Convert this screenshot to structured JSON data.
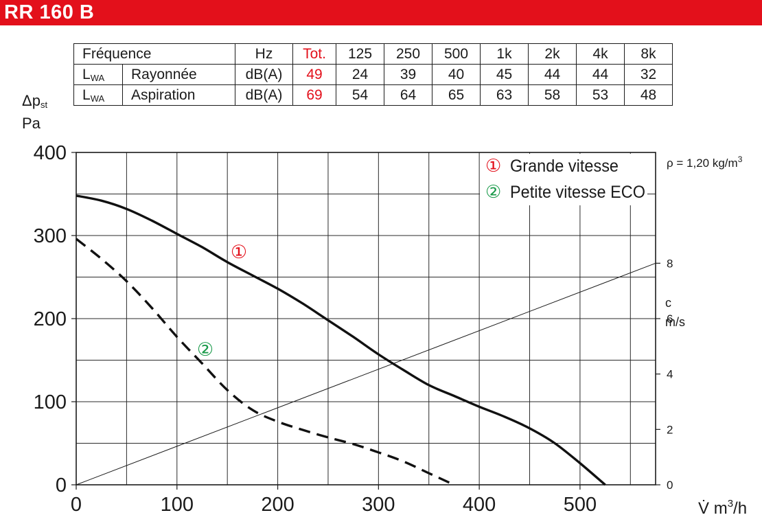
{
  "header": {
    "title": "RR 160 B"
  },
  "table": {
    "headers": [
      "Fréquence",
      "Hz",
      "Tot.",
      "125",
      "250",
      "500",
      "1k",
      "2k",
      "4k",
      "8k"
    ],
    "rows": [
      {
        "sym_main": "L",
        "sym_sub": "WA",
        "label": "Rayonnée",
        "unit": "dB(A)",
        "tot": "49",
        "values": [
          "24",
          "39",
          "40",
          "45",
          "44",
          "44",
          "32"
        ]
      },
      {
        "sym_main": "L",
        "sym_sub": "WA",
        "label": "Aspiration",
        "unit": "dB(A)",
        "tot": "69",
        "values": [
          "54",
          "64",
          "65",
          "63",
          "58",
          "53",
          "48"
        ]
      }
    ]
  },
  "chart_data": {
    "type": "line",
    "ylabel_symbol": "Δp",
    "ylabel_sub": "st",
    "ylabel_unit": "Pa",
    "xlabel_symbol": "V̇",
    "xlabel_unit": "m",
    "xlabel_sup": "3",
    "xlabel_tail": "/h",
    "y2label_symbol": "c",
    "y2label_unit": "m/s",
    "density_prefix": "ρ = 1,20 kg/m",
    "density_sup": "3",
    "xlim": [
      0,
      575
    ],
    "ylim": [
      0,
      400
    ],
    "y2lim": [
      0,
      12
    ],
    "x_ticks": [
      "0",
      "100",
      "200",
      "300",
      "400",
      "500"
    ],
    "y_ticks": [
      "0",
      "100",
      "200",
      "300",
      "400"
    ],
    "y2_ticks": [
      "0",
      "2",
      "4",
      "6",
      "8"
    ],
    "grid": true,
    "series": [
      {
        "name": "Grande vitesse",
        "marker": "①",
        "color": "#e3101b",
        "style": "solid",
        "x": [
          0,
          25,
          50,
          75,
          100,
          125,
          150,
          175,
          200,
          225,
          250,
          275,
          300,
          325,
          350,
          375,
          400,
          425,
          450,
          475,
          500,
          525
        ],
        "y": [
          348,
          342,
          332,
          318,
          302,
          286,
          268,
          252,
          236,
          218,
          198,
          178,
          157,
          138,
          120,
          107,
          94,
          82,
          68,
          50,
          26,
          0
        ]
      },
      {
        "name": "Petite vitesse ECO",
        "marker": "②",
        "color": "#1a9a4a",
        "style": "dashed",
        "x": [
          0,
          25,
          50,
          75,
          100,
          125,
          150,
          175,
          200,
          225,
          250,
          275,
          300,
          325,
          350,
          375
        ],
        "y": [
          296,
          272,
          245,
          213,
          178,
          146,
          114,
          90,
          76,
          66,
          57,
          49,
          39,
          28,
          14,
          0
        ]
      }
    ],
    "velocity_line": {
      "x": [
        0,
        575
      ],
      "c": [
        0,
        8
      ]
    }
  }
}
